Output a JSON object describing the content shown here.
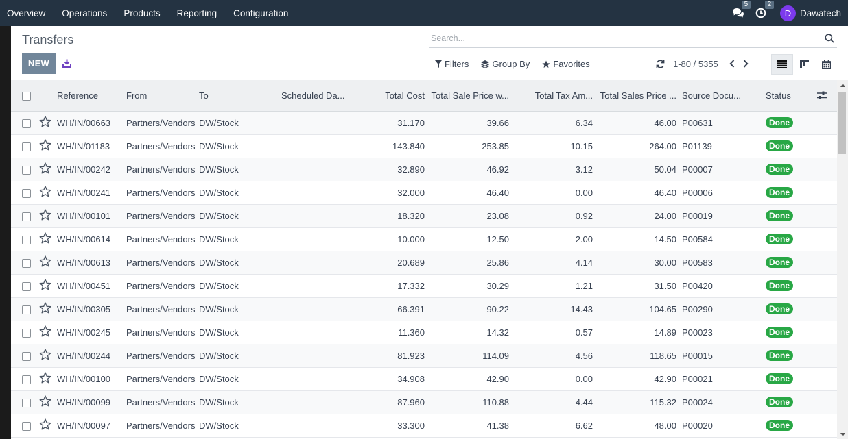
{
  "navbar": {
    "menu": [
      "Overview",
      "Operations",
      "Products",
      "Reporting",
      "Configuration"
    ],
    "messages_count": "5",
    "activities_count": "2",
    "user_initial": "D",
    "user_name": "Dawatech"
  },
  "control_panel": {
    "title": "Transfers",
    "new_label": "NEW",
    "search_placeholder": "Search...",
    "filters_label": "Filters",
    "group_by_label": "Group By",
    "favorites_label": "Favorites",
    "pager_value": "1-80 / 5355"
  },
  "table": {
    "columns": [
      "Reference",
      "From",
      "To",
      "Scheduled Da...",
      "Total Cost",
      "Total Sale Price w...",
      "Total Tax Am...",
      "Total Sales Price ...",
      "Source Docu...",
      "Status"
    ],
    "rows": [
      {
        "reference": "WH/IN/00663",
        "from": "Partners/Vendors",
        "to": "DW/Stock",
        "scheduled": "",
        "total_cost": "31.170",
        "sale_price": "39.66",
        "tax": "6.34",
        "sales_price": "46.00",
        "source": "P00631",
        "status": "Done"
      },
      {
        "reference": "WH/IN/01183",
        "from": "Partners/Vendors",
        "to": "DW/Stock",
        "scheduled": "",
        "total_cost": "143.840",
        "sale_price": "253.85",
        "tax": "10.15",
        "sales_price": "264.00",
        "source": "P01139",
        "status": "Done"
      },
      {
        "reference": "WH/IN/00242",
        "from": "Partners/Vendors",
        "to": "DW/Stock",
        "scheduled": "",
        "total_cost": "32.890",
        "sale_price": "46.92",
        "tax": "3.12",
        "sales_price": "50.04",
        "source": "P00007",
        "status": "Done"
      },
      {
        "reference": "WH/IN/00241",
        "from": "Partners/Vendors",
        "to": "DW/Stock",
        "scheduled": "",
        "total_cost": "32.000",
        "sale_price": "46.40",
        "tax": "0.00",
        "sales_price": "46.40",
        "source": "P00006",
        "status": "Done"
      },
      {
        "reference": "WH/IN/00101",
        "from": "Partners/Vendors",
        "to": "DW/Stock",
        "scheduled": "",
        "total_cost": "18.320",
        "sale_price": "23.08",
        "tax": "0.92",
        "sales_price": "24.00",
        "source": "P00019",
        "status": "Done"
      },
      {
        "reference": "WH/IN/00614",
        "from": "Partners/Vendors",
        "to": "DW/Stock",
        "scheduled": "",
        "total_cost": "10.000",
        "sale_price": "12.50",
        "tax": "2.00",
        "sales_price": "14.50",
        "source": "P00584",
        "status": "Done"
      },
      {
        "reference": "WH/IN/00613",
        "from": "Partners/Vendors",
        "to": "DW/Stock",
        "scheduled": "",
        "total_cost": "20.689",
        "sale_price": "25.86",
        "tax": "4.14",
        "sales_price": "30.00",
        "source": "P00583",
        "status": "Done"
      },
      {
        "reference": "WH/IN/00451",
        "from": "Partners/Vendors",
        "to": "DW/Stock",
        "scheduled": "",
        "total_cost": "17.332",
        "sale_price": "30.29",
        "tax": "1.21",
        "sales_price": "31.50",
        "source": "P00420",
        "status": "Done"
      },
      {
        "reference": "WH/IN/00305",
        "from": "Partners/Vendors",
        "to": "DW/Stock",
        "scheduled": "",
        "total_cost": "66.391",
        "sale_price": "90.22",
        "tax": "14.43",
        "sales_price": "104.65",
        "source": "P00290",
        "status": "Done"
      },
      {
        "reference": "WH/IN/00245",
        "from": "Partners/Vendors",
        "to": "DW/Stock",
        "scheduled": "",
        "total_cost": "11.360",
        "sale_price": "14.32",
        "tax": "0.57",
        "sales_price": "14.89",
        "source": "P00023",
        "status": "Done"
      },
      {
        "reference": "WH/IN/00244",
        "from": "Partners/Vendors",
        "to": "DW/Stock",
        "scheduled": "",
        "total_cost": "81.923",
        "sale_price": "114.09",
        "tax": "4.56",
        "sales_price": "118.65",
        "source": "P00015",
        "status": "Done"
      },
      {
        "reference": "WH/IN/00100",
        "from": "Partners/Vendors",
        "to": "DW/Stock",
        "scheduled": "",
        "total_cost": "34.908",
        "sale_price": "42.90",
        "tax": "0.00",
        "sales_price": "42.90",
        "source": "P00021",
        "status": "Done"
      },
      {
        "reference": "WH/IN/00099",
        "from": "Partners/Vendors",
        "to": "DW/Stock",
        "scheduled": "",
        "total_cost": "87.960",
        "sale_price": "110.88",
        "tax": "4.44",
        "sales_price": "115.32",
        "source": "P00024",
        "status": "Done"
      },
      {
        "reference": "WH/IN/00097",
        "from": "Partners/Vendors",
        "to": "DW/Stock",
        "scheduled": "",
        "total_cost": "33.300",
        "sale_price": "41.38",
        "tax": "6.62",
        "sales_price": "48.00",
        "source": "P00020",
        "status": "Done"
      }
    ]
  },
  "colors": {
    "navbar": "#243342",
    "primary_button": "#71869a",
    "status_done": "#28a745",
    "avatar": "#7c3aed"
  }
}
